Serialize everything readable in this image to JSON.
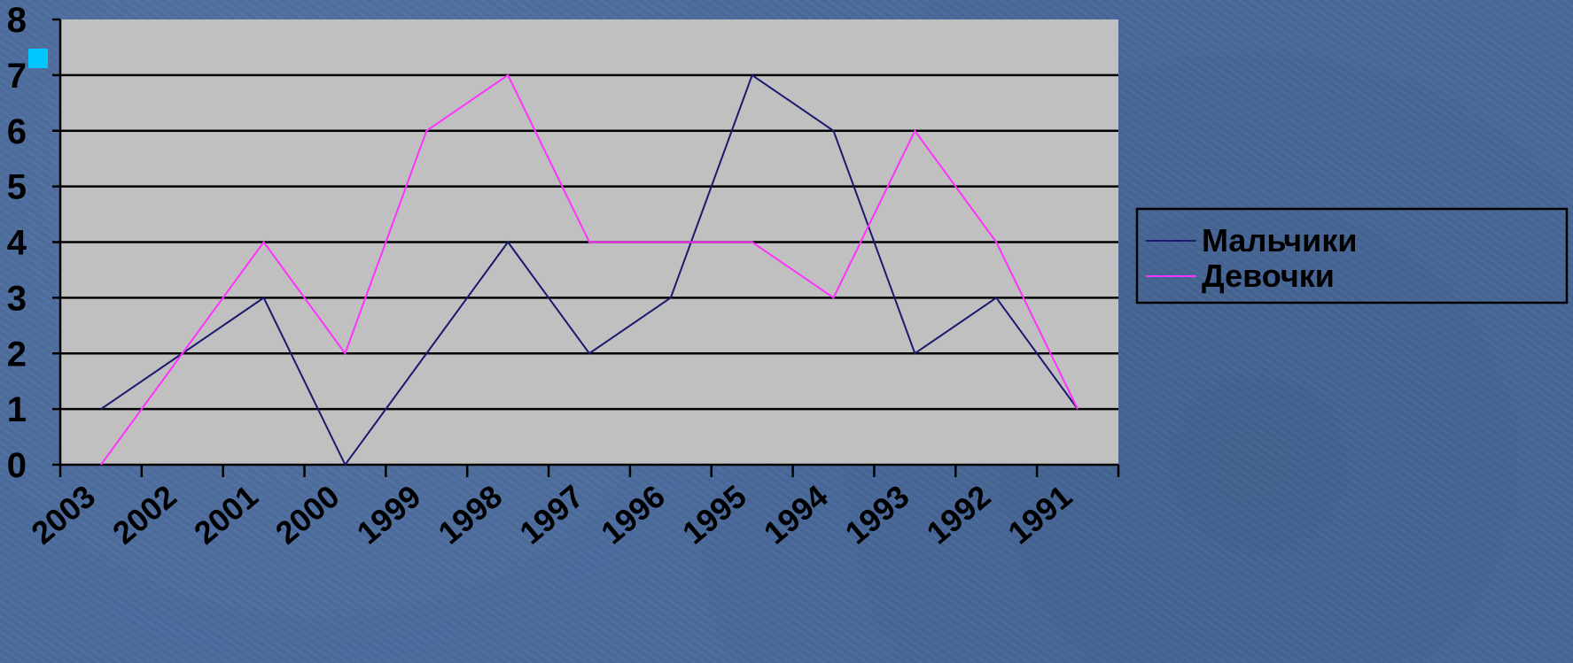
{
  "chart_data": {
    "type": "line",
    "categories": [
      "2003",
      "2002",
      "2001",
      "2000",
      "1999",
      "1998",
      "1997",
      "1996",
      "1995",
      "1994",
      "1993",
      "1992",
      "1991"
    ],
    "series": [
      {
        "name": "Мальчики",
        "values": [
          1,
          2,
          3,
          0,
          2,
          4,
          2,
          3,
          7,
          6,
          2,
          3,
          1
        ],
        "color": "#1a1a6e"
      },
      {
        "name": "Девочки",
        "values": [
          0,
          2,
          4,
          2,
          6,
          7,
          4,
          4,
          4,
          3,
          6,
          4,
          1
        ],
        "color": "#ff33ff"
      }
    ],
    "y_ticks": [
      "0",
      "1",
      "2",
      "3",
      "4",
      "5",
      "6",
      "7",
      "8"
    ],
    "ylim": [
      0,
      8
    ],
    "grid": true,
    "plot_background": "#c0c0c0",
    "legend_position": "right"
  },
  "slide": {
    "background": "#4a6a9c",
    "marker_color": "#00c8ff"
  }
}
